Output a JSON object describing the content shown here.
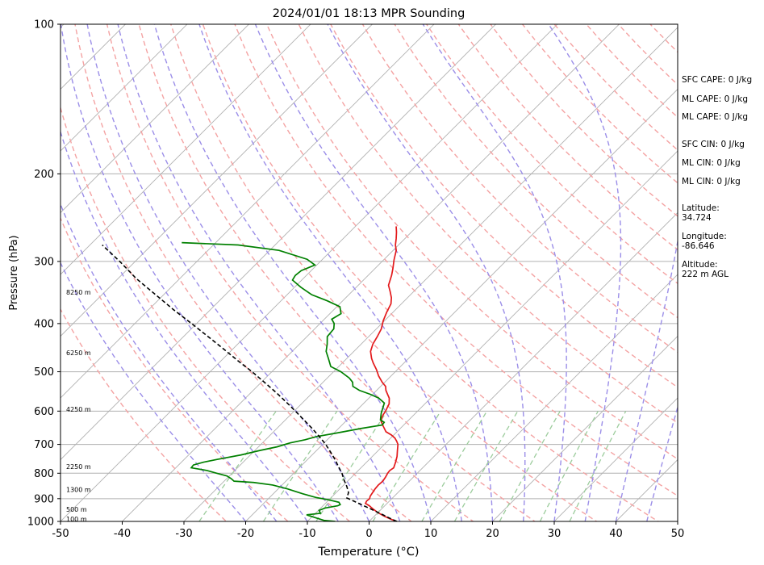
{
  "chart_data": {
    "type": "line",
    "title": "2024/01/01 18:13 MPR Sounding",
    "xlabel": "Temperature (°C)",
    "ylabel": "Pressure (hPa)",
    "xlim": [
      -50,
      50
    ],
    "ylim": [
      1000,
      100
    ],
    "y_scale": "log",
    "skew": true,
    "x_ticks": [
      -50,
      -40,
      -30,
      -20,
      -10,
      0,
      10,
      20,
      30,
      40,
      50
    ],
    "y_ticks": [
      100,
      200,
      300,
      400,
      500,
      600,
      700,
      800,
      900,
      1000
    ],
    "grid": true,
    "series": [
      {
        "key": "temperature",
        "color": "#e31a1c",
        "points": [
          [
            4.5,
            1000
          ],
          [
            3.2,
            990
          ],
          [
            1.5,
            975
          ],
          [
            0,
            960
          ],
          [
            -1.3,
            945
          ],
          [
            -2.5,
            930
          ],
          [
            -3.5,
            920
          ],
          [
            -3.7,
            910
          ],
          [
            -3.6,
            900
          ],
          [
            -3.9,
            890
          ],
          [
            -4.1,
            875
          ],
          [
            -4.3,
            860
          ],
          [
            -4.4,
            845
          ],
          [
            -4.3,
            830
          ],
          [
            -4.5,
            815
          ],
          [
            -4.8,
            800
          ],
          [
            -4.9,
            790
          ],
          [
            -4.7,
            780
          ],
          [
            -5.3,
            760
          ],
          [
            -6,
            740
          ],
          [
            -6.9,
            720
          ],
          [
            -7.8,
            700
          ],
          [
            -8.5,
            690
          ],
          [
            -9.3,
            680
          ],
          [
            -10.4,
            670
          ],
          [
            -11.8,
            660
          ],
          [
            -13,
            645
          ],
          [
            -14.2,
            630
          ],
          [
            -14.7,
            620
          ],
          [
            -15,
            610
          ],
          [
            -15.2,
            600
          ],
          [
            -15.8,
            580
          ],
          [
            -16.7,
            565
          ],
          [
            -17.6,
            555
          ],
          [
            -18.5,
            545
          ],
          [
            -19.2,
            535
          ],
          [
            -20.4,
            525
          ],
          [
            -22,
            510
          ],
          [
            -23.4,
            495
          ],
          [
            -25,
            480
          ],
          [
            -26,
            470
          ],
          [
            -27.3,
            455
          ],
          [
            -28.1,
            440
          ],
          [
            -28.6,
            425
          ],
          [
            -29.2,
            410
          ],
          [
            -30.2,
            395
          ],
          [
            -31,
            380
          ],
          [
            -31.7,
            365
          ],
          [
            -32.6,
            355
          ],
          [
            -33.8,
            345
          ],
          [
            -35.1,
            335
          ],
          [
            -36.2,
            320
          ],
          [
            -37.1,
            310
          ],
          [
            -38.3,
            298
          ],
          [
            -39.5,
            285
          ],
          [
            -40.5,
            278
          ],
          [
            -41.4,
            270
          ],
          [
            -42.4,
            262
          ],
          [
            -43.4,
            255
          ]
        ]
      },
      {
        "key": "dewpoint",
        "color": "#008000",
        "points": [
          [
            -5.5,
            1000
          ],
          [
            -7.5,
            995
          ],
          [
            -9,
            985
          ],
          [
            -11.2,
            970
          ],
          [
            -9.2,
            963
          ],
          [
            -9.9,
            950
          ],
          [
            -9.3,
            940
          ],
          [
            -7.6,
            930
          ],
          [
            -7.4,
            925
          ],
          [
            -8,
            915
          ],
          [
            -10,
            905
          ],
          [
            -12.5,
            895
          ],
          [
            -15.2,
            880
          ],
          [
            -18.5,
            860
          ],
          [
            -21.5,
            845
          ],
          [
            -25,
            835
          ],
          [
            -28.4,
            830
          ],
          [
            -29.3,
            820
          ],
          [
            -30.4,
            810
          ],
          [
            -32.5,
            800
          ],
          [
            -34.5,
            790
          ],
          [
            -37.5,
            780
          ],
          [
            -37.6,
            770
          ],
          [
            -36.4,
            760
          ],
          [
            -34.6,
            750
          ],
          [
            -31.5,
            735
          ],
          [
            -29.2,
            720
          ],
          [
            -27,
            708
          ],
          [
            -25.5,
            695
          ],
          [
            -23.6,
            685
          ],
          [
            -22.2,
            675
          ],
          [
            -19.8,
            665
          ],
          [
            -16.3,
            650
          ],
          [
            -13.5,
            640
          ],
          [
            -13.6,
            632
          ],
          [
            -14.6,
            625
          ],
          [
            -15.1,
            615
          ],
          [
            -15.6,
            605
          ],
          [
            -16,
            595
          ],
          [
            -16.7,
            578
          ],
          [
            -18.4,
            565
          ],
          [
            -20.4,
            555
          ],
          [
            -22.8,
            545
          ],
          [
            -24.5,
            535
          ],
          [
            -25.2,
            525
          ],
          [
            -26.4,
            515
          ],
          [
            -28.8,
            500
          ],
          [
            -31.3,
            488
          ],
          [
            -33,
            470
          ],
          [
            -34.5,
            455
          ],
          [
            -35.5,
            440
          ],
          [
            -36.7,
            425
          ],
          [
            -36.9,
            410
          ],
          [
            -37.7,
            400
          ],
          [
            -38.8,
            392
          ],
          [
            -38.2,
            382
          ],
          [
            -39.5,
            370
          ],
          [
            -42.5,
            360
          ],
          [
            -46,
            350
          ],
          [
            -49,
            338
          ],
          [
            -51.5,
            327
          ],
          [
            -51.8,
            320
          ],
          [
            -51.6,
            313
          ],
          [
            -50.3,
            305
          ],
          [
            -52.5,
            297
          ],
          [
            -58.5,
            285
          ],
          [
            -66,
            278
          ],
          [
            -75.5,
            275
          ]
        ]
      },
      {
        "key": "parcel",
        "color": "#000000",
        "points": [
          [
            4.5,
            1000
          ],
          [
            2.8,
            985
          ],
          [
            1.2,
            970
          ],
          [
            -0.5,
            955
          ],
          [
            -2.2,
            940
          ],
          [
            -4,
            925
          ],
          [
            -5.8,
            910
          ],
          [
            -7.4,
            897
          ],
          [
            -8,
            875
          ],
          [
            -9.3,
            850
          ],
          [
            -10.8,
            825
          ],
          [
            -12.2,
            800
          ],
          [
            -13.9,
            775
          ],
          [
            -15.6,
            750
          ],
          [
            -17.5,
            725
          ],
          [
            -19.5,
            700
          ],
          [
            -21.8,
            675
          ],
          [
            -24.3,
            650
          ],
          [
            -27,
            625
          ],
          [
            -29.8,
            600
          ],
          [
            -32.8,
            575
          ],
          [
            -36,
            550
          ],
          [
            -39.5,
            525
          ],
          [
            -43.2,
            500
          ],
          [
            -47.3,
            475
          ],
          [
            -51.5,
            450
          ],
          [
            -56,
            425
          ],
          [
            -60.8,
            400
          ],
          [
            -66,
            375
          ],
          [
            -71.3,
            350
          ],
          [
            -77,
            325
          ],
          [
            -82.5,
            300
          ],
          [
            -88,
            278
          ]
        ]
      }
    ],
    "height_labels": [
      {
        "label": "100 m",
        "p": 988
      },
      {
        "label": "500 m",
        "p": 945
      },
      {
        "label": "1300 m",
        "p": 862
      },
      {
        "label": "2250 m",
        "p": 775
      },
      {
        "label": "4250 m",
        "p": 595
      },
      {
        "label": "6250 m",
        "p": 458
      },
      {
        "label": "8250 m",
        "p": 346
      }
    ]
  },
  "side_panel": [
    {
      "lines": [
        "SFC CAPE: 0 J/kg"
      ]
    },
    {
      "lines": [
        "ML CAPE: 0 J/kg"
      ]
    },
    {
      "lines": [
        "ML CAPE: 0 J/kg"
      ]
    },
    {
      "lines": [
        "SFC CIN: 0 J/kg"
      ]
    },
    {
      "lines": [
        "ML CIN: 0 J/kg"
      ]
    },
    {
      "lines": [
        "ML CIN: 0 J/kg"
      ]
    },
    {
      "lines": [
        "Latitude:",
        "34.724"
      ]
    },
    {
      "lines": [
        "Longitude:",
        "-86.646"
      ]
    },
    {
      "lines": [
        "Altitude:",
        "222 m AGL"
      ]
    }
  ]
}
